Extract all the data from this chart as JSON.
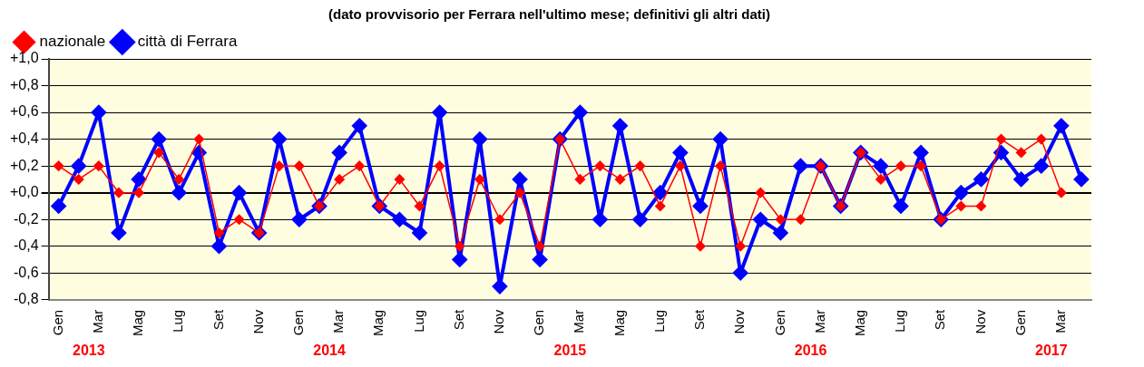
{
  "chart_data": {
    "type": "line",
    "title": "(dato provvisorio per Ferrara nell'ultimo mese; definitivi gli altri dati)",
    "categories": [
      "Gen",
      null,
      "Mar",
      null,
      "Mag",
      null,
      "Lug",
      null,
      "Set",
      null,
      "Nov",
      null,
      "Gen",
      null,
      "Mar",
      null,
      "Mag",
      null,
      "Lug",
      null,
      "Set",
      null,
      "Nov",
      null,
      "Gen",
      null,
      "Mar",
      null,
      "Mag",
      null,
      "Lug",
      null,
      "Set",
      null,
      "Nov",
      null,
      "Gen",
      null,
      "Mar",
      null,
      "Mag",
      null,
      "Lug",
      null,
      "Set",
      null,
      "Nov",
      null,
      "Gen",
      null,
      "Mar",
      null
    ],
    "series": [
      {
        "name": "città di Ferrara",
        "color": "#0000ff",
        "values": [
          -0.1,
          0.2,
          0.6,
          -0.3,
          0.1,
          0.4,
          0.0,
          0.3,
          -0.4,
          0.0,
          -0.3,
          0.4,
          -0.2,
          -0.1,
          0.3,
          0.5,
          -0.1,
          -0.2,
          -0.3,
          0.6,
          -0.5,
          0.4,
          -0.7,
          0.1,
          -0.5,
          0.4,
          0.6,
          -0.2,
          0.5,
          -0.2,
          0.0,
          0.3,
          -0.1,
          0.4,
          -0.6,
          -0.2,
          -0.3,
          0.2,
          0.2,
          -0.1,
          0.3,
          0.2,
          -0.1,
          0.3,
          -0.2,
          0.0,
          0.1,
          0.3,
          0.1,
          0.2,
          0.5,
          0.1
        ]
      },
      {
        "name": "nazionale",
        "color": "#ff0000",
        "values": [
          0.2,
          0.1,
          0.2,
          0.0,
          0.0,
          0.3,
          0.1,
          0.4,
          -0.3,
          -0.2,
          -0.3,
          0.2,
          0.2,
          -0.1,
          0.1,
          0.2,
          -0.1,
          0.1,
          -0.1,
          0.2,
          -0.4,
          0.1,
          -0.2,
          0.0,
          -0.4,
          0.4,
          0.1,
          0.2,
          0.1,
          0.2,
          -0.1,
          0.2,
          -0.4,
          0.2,
          -0.4,
          0.0,
          -0.2,
          -0.2,
          0.2,
          -0.1,
          0.3,
          0.1,
          0.2,
          0.2,
          -0.2,
          -0.1,
          -0.1,
          0.4,
          0.3,
          0.4,
          0.0,
          null
        ]
      }
    ],
    "ylim": [
      -0.8,
      1.0
    ],
    "yticks": [
      {
        "value": -0.8,
        "label": "-0,8"
      },
      {
        "value": -0.6,
        "label": "-0,6"
      },
      {
        "value": -0.4,
        "label": "-0,4"
      },
      {
        "value": -0.2,
        "label": "-0,2"
      },
      {
        "value": 0,
        "label": "+0,0"
      },
      {
        "value": 0.2,
        "label": "+0,2"
      },
      {
        "value": 0.4,
        "label": "+0,4"
      },
      {
        "value": 0.6,
        "label": "+0,6"
      },
      {
        "value": 0.8,
        "label": "+0,8"
      },
      {
        "value": 1.0,
        "label": "+1,0"
      }
    ],
    "grid": "y",
    "legend": "top left",
    "marker": "diamond",
    "annotations": [
      "2013",
      "2014",
      "2015",
      "2016",
      "2017"
    ]
  }
}
